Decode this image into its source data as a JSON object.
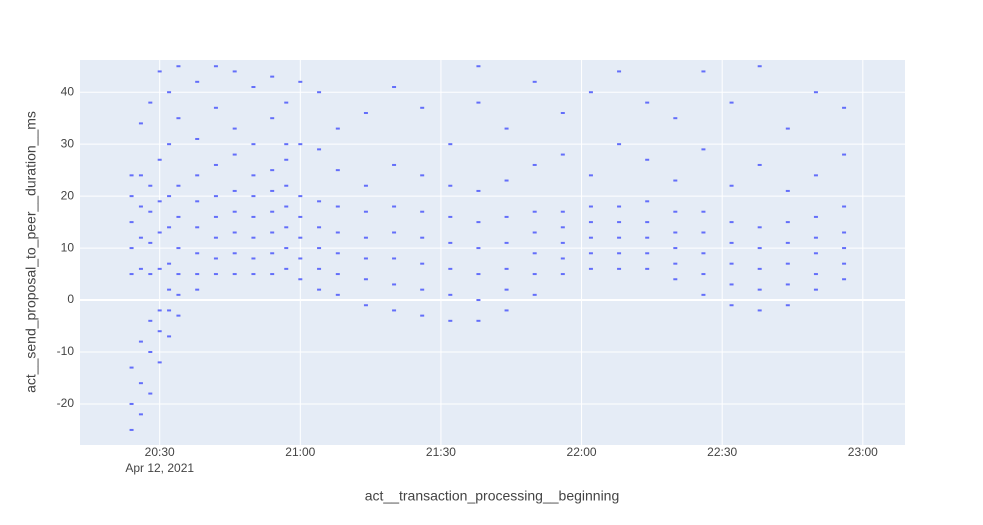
{
  "chart_data": {
    "type": "scatter",
    "x_label": "act__transaction_processing__beginning",
    "y_label": "act__send_proposal_to_peer__duration__ms",
    "color": "#636efa",
    "grid": true,
    "xlim": [
      "2021-04-12 20:13",
      "2021-04-12 23:09"
    ],
    "xticks": [
      {
        "value": "2021-04-12 20:30",
        "label": "20:30"
      },
      {
        "value": "2021-04-12 21:00",
        "label": "21:00"
      },
      {
        "value": "2021-04-12 21:30",
        "label": "21:30"
      },
      {
        "value": "2021-04-12 22:00",
        "label": "22:00"
      },
      {
        "value": "2021-04-12 22:30",
        "label": "22:30"
      },
      {
        "value": "2021-04-12 23:00",
        "label": "23:00"
      }
    ],
    "x_date_label": "Apr 12, 2021",
    "ylim": [
      -27.9,
      46.2
    ],
    "yticks": [
      -20,
      -10,
      0,
      10,
      20,
      30,
      40
    ],
    "x": [
      "2021-04-12 20:24",
      "2021-04-12 20:24",
      "2021-04-12 20:24",
      "2021-04-12 20:24",
      "2021-04-12 20:24",
      "2021-04-12 20:24",
      "2021-04-12 20:24",
      "2021-04-12 20:24",
      "2021-04-12 20:26",
      "2021-04-12 20:26",
      "2021-04-12 20:26",
      "2021-04-12 20:26",
      "2021-04-12 20:26",
      "2021-04-12 20:26",
      "2021-04-12 20:26",
      "2021-04-12 20:26",
      "2021-04-12 20:28",
      "2021-04-12 20:28",
      "2021-04-12 20:28",
      "2021-04-12 20:28",
      "2021-04-12 20:28",
      "2021-04-12 20:28",
      "2021-04-12 20:28",
      "2021-04-12 20:28",
      "2021-04-12 20:30",
      "2021-04-12 20:30",
      "2021-04-12 20:30",
      "2021-04-12 20:30",
      "2021-04-12 20:30",
      "2021-04-12 20:30",
      "2021-04-12 20:30",
      "2021-04-12 20:30",
      "2021-04-12 20:32",
      "2021-04-12 20:32",
      "2021-04-12 20:32",
      "2021-04-12 20:32",
      "2021-04-12 20:32",
      "2021-04-12 20:32",
      "2021-04-12 20:32",
      "2021-04-12 20:32",
      "2021-04-12 20:34",
      "2021-04-12 20:34",
      "2021-04-12 20:34",
      "2021-04-12 20:34",
      "2021-04-12 20:34",
      "2021-04-12 20:34",
      "2021-04-12 20:34",
      "2021-04-12 20:34",
      "2021-04-12 20:38",
      "2021-04-12 20:38",
      "2021-04-12 20:38",
      "2021-04-12 20:38",
      "2021-04-12 20:38",
      "2021-04-12 20:38",
      "2021-04-12 20:38",
      "2021-04-12 20:38",
      "2021-04-12 20:42",
      "2021-04-12 20:42",
      "2021-04-12 20:42",
      "2021-04-12 20:42",
      "2021-04-12 20:42",
      "2021-04-12 20:42",
      "2021-04-12 20:42",
      "2021-04-12 20:42",
      "2021-04-12 20:46",
      "2021-04-12 20:46",
      "2021-04-12 20:46",
      "2021-04-12 20:46",
      "2021-04-12 20:46",
      "2021-04-12 20:46",
      "2021-04-12 20:46",
      "2021-04-12 20:46",
      "2021-04-12 20:50",
      "2021-04-12 20:50",
      "2021-04-12 20:50",
      "2021-04-12 20:50",
      "2021-04-12 20:50",
      "2021-04-12 20:50",
      "2021-04-12 20:50",
      "2021-04-12 20:50",
      "2021-04-12 20:54",
      "2021-04-12 20:54",
      "2021-04-12 20:54",
      "2021-04-12 20:54",
      "2021-04-12 20:54",
      "2021-04-12 20:54",
      "2021-04-12 20:54",
      "2021-04-12 20:54",
      "2021-04-12 20:57",
      "2021-04-12 20:57",
      "2021-04-12 20:57",
      "2021-04-12 20:57",
      "2021-04-12 20:57",
      "2021-04-12 20:57",
      "2021-04-12 20:57",
      "2021-04-12 20:57",
      "2021-04-12 21:00",
      "2021-04-12 21:00",
      "2021-04-12 21:00",
      "2021-04-12 21:00",
      "2021-04-12 21:00",
      "2021-04-12 21:00",
      "2021-04-12 21:00",
      "2021-04-12 21:04",
      "2021-04-12 21:04",
      "2021-04-12 21:04",
      "2021-04-12 21:04",
      "2021-04-12 21:04",
      "2021-04-12 21:04",
      "2021-04-12 21:04",
      "2021-04-12 21:08",
      "2021-04-12 21:08",
      "2021-04-12 21:08",
      "2021-04-12 21:08",
      "2021-04-12 21:08",
      "2021-04-12 21:08",
      "2021-04-12 21:08",
      "2021-04-12 21:14",
      "2021-04-12 21:14",
      "2021-04-12 21:14",
      "2021-04-12 21:14",
      "2021-04-12 21:14",
      "2021-04-12 21:14",
      "2021-04-12 21:14",
      "2021-04-12 21:20",
      "2021-04-12 21:20",
      "2021-04-12 21:20",
      "2021-04-12 21:20",
      "2021-04-12 21:20",
      "2021-04-12 21:20",
      "2021-04-12 21:20",
      "2021-04-12 21:26",
      "2021-04-12 21:26",
      "2021-04-12 21:26",
      "2021-04-12 21:26",
      "2021-04-12 21:26",
      "2021-04-12 21:26",
      "2021-04-12 21:26",
      "2021-04-12 21:32",
      "2021-04-12 21:32",
      "2021-04-12 21:32",
      "2021-04-12 21:32",
      "2021-04-12 21:32",
      "2021-04-12 21:32",
      "2021-04-12 21:32",
      "2021-04-12 21:38",
      "2021-04-12 21:38",
      "2021-04-12 21:38",
      "2021-04-12 21:38",
      "2021-04-12 21:38",
      "2021-04-12 21:38",
      "2021-04-12 21:38",
      "2021-04-12 21:38",
      "2021-04-12 21:44",
      "2021-04-12 21:44",
      "2021-04-12 21:44",
      "2021-04-12 21:44",
      "2021-04-12 21:44",
      "2021-04-12 21:44",
      "2021-04-12 21:44",
      "2021-04-12 21:50",
      "2021-04-12 21:50",
      "2021-04-12 21:50",
      "2021-04-12 21:50",
      "2021-04-12 21:50",
      "2021-04-12 21:50",
      "2021-04-12 21:50",
      "2021-04-12 21:56",
      "2021-04-12 21:56",
      "2021-04-12 21:56",
      "2021-04-12 21:56",
      "2021-04-12 21:56",
      "2021-04-12 21:56",
      "2021-04-12 21:56",
      "2021-04-12 22:02",
      "2021-04-12 22:02",
      "2021-04-12 22:02",
      "2021-04-12 22:02",
      "2021-04-12 22:02",
      "2021-04-12 22:02",
      "2021-04-12 22:02",
      "2021-04-12 22:08",
      "2021-04-12 22:08",
      "2021-04-12 22:08",
      "2021-04-12 22:08",
      "2021-04-12 22:08",
      "2021-04-12 22:08",
      "2021-04-12 22:08",
      "2021-04-12 22:14",
      "2021-04-12 22:14",
      "2021-04-12 22:14",
      "2021-04-12 22:14",
      "2021-04-12 22:14",
      "2021-04-12 22:14",
      "2021-04-12 22:14",
      "2021-04-12 22:20",
      "2021-04-12 22:20",
      "2021-04-12 22:20",
      "2021-04-12 22:20",
      "2021-04-12 22:20",
      "2021-04-12 22:20",
      "2021-04-12 22:20",
      "2021-04-12 22:26",
      "2021-04-12 22:26",
      "2021-04-12 22:26",
      "2021-04-12 22:26",
      "2021-04-12 22:26",
      "2021-04-12 22:26",
      "2021-04-12 22:26",
      "2021-04-12 22:32",
      "2021-04-12 22:32",
      "2021-04-12 22:32",
      "2021-04-12 22:32",
      "2021-04-12 22:32",
      "2021-04-12 22:32",
      "2021-04-12 22:32",
      "2021-04-12 22:38",
      "2021-04-12 22:38",
      "2021-04-12 22:38",
      "2021-04-12 22:38",
      "2021-04-12 22:38",
      "2021-04-12 22:38",
      "2021-04-12 22:38",
      "2021-04-12 22:44",
      "2021-04-12 22:44",
      "2021-04-12 22:44",
      "2021-04-12 22:44",
      "2021-04-12 22:44",
      "2021-04-12 22:44",
      "2021-04-12 22:44",
      "2021-04-12 22:50",
      "2021-04-12 22:50",
      "2021-04-12 22:50",
      "2021-04-12 22:50",
      "2021-04-12 22:50",
      "2021-04-12 22:50",
      "2021-04-12 22:50",
      "2021-04-12 22:56",
      "2021-04-12 22:56",
      "2021-04-12 22:56",
      "2021-04-12 22:56",
      "2021-04-12 22:56",
      "2021-04-12 22:56",
      "2021-04-12 22:56"
    ],
    "values": [
      -25,
      -20,
      -13,
      5,
      10,
      15,
      20,
      24,
      -22,
      -16,
      -8,
      6,
      12,
      18,
      24,
      34,
      -18,
      -10,
      -4,
      5,
      11,
      17,
      22,
      38,
      -12,
      -6,
      -2,
      6,
      13,
      19,
      27,
      44,
      -7,
      -2,
      2,
      7,
      14,
      20,
      30,
      40,
      -3,
      1,
      5,
      10,
      16,
      22,
      35,
      45,
      2,
      5,
      9,
      14,
      19,
      24,
      31,
      42,
      5,
      8,
      12,
      16,
      20,
      26,
      37,
      45,
      5,
      9,
      13,
      17,
      21,
      28,
      33,
      44,
      5,
      8,
      12,
      16,
      20,
      24,
      30,
      41,
      5,
      9,
      13,
      17,
      21,
      25,
      35,
      43,
      6,
      10,
      14,
      18,
      22,
      27,
      30,
      38,
      4,
      8,
      12,
      16,
      20,
      30,
      42,
      2,
      6,
      10,
      14,
      19,
      29,
      40,
      1,
      5,
      9,
      13,
      18,
      25,
      33,
      -1,
      4,
      8,
      12,
      17,
      22,
      36,
      -2,
      3,
      8,
      13,
      18,
      26,
      41,
      -3,
      2,
      7,
      12,
      17,
      24,
      37,
      -4,
      1,
      6,
      11,
      16,
      22,
      30,
      -4,
      0,
      5,
      10,
      15,
      21,
      38,
      45,
      -2,
      2,
      6,
      11,
      16,
      23,
      33,
      1,
      5,
      9,
      13,
      17,
      26,
      42,
      5,
      8,
      11,
      14,
      17,
      28,
      36,
      6,
      9,
      12,
      15,
      18,
      24,
      40,
      6,
      9,
      12,
      15,
      18,
      30,
      44,
      6,
      9,
      12,
      15,
      19,
      27,
      38,
      4,
      7,
      10,
      13,
      17,
      23,
      35,
      1,
      5,
      9,
      13,
      17,
      29,
      44,
      -1,
      3,
      7,
      11,
      15,
      22,
      38,
      -2,
      2,
      6,
      10,
      14,
      26,
      45,
      -1,
      3,
      7,
      11,
      15,
      21,
      33,
      2,
      5,
      9,
      12,
      16,
      24,
      40,
      4,
      7,
      10,
      13,
      18,
      28,
      37
    ]
  }
}
